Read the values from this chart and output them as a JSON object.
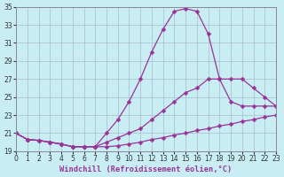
{
  "xlabel": "Windchill (Refroidissement éolien,°C)",
  "background_color": "#c8eef4",
  "grid_color": "#aabbcc",
  "line_color": "#993399",
  "xlim": [
    0,
    23
  ],
  "ylim": [
    19,
    35
  ],
  "xticks": [
    0,
    1,
    2,
    3,
    4,
    5,
    6,
    7,
    8,
    9,
    10,
    11,
    12,
    13,
    14,
    15,
    16,
    17,
    18,
    19,
    20,
    21,
    22,
    23
  ],
  "yticks": [
    19,
    21,
    23,
    25,
    27,
    29,
    31,
    33,
    35
  ],
  "line1_x": [
    0,
    1,
    2,
    3,
    4,
    5,
    6,
    7,
    8,
    9,
    10,
    11,
    12,
    13,
    14,
    15,
    16,
    17,
    18,
    19,
    20,
    21,
    22,
    23
  ],
  "line1_y": [
    21.0,
    20.3,
    20.2,
    20.0,
    19.8,
    19.5,
    19.5,
    19.5,
    19.5,
    19.6,
    19.8,
    20.0,
    20.3,
    20.5,
    20.8,
    21.0,
    21.3,
    21.5,
    21.8,
    22.0,
    22.3,
    22.5,
    22.8,
    23.0
  ],
  "line2_x": [
    0,
    1,
    2,
    3,
    4,
    5,
    6,
    7,
    8,
    9,
    10,
    11,
    12,
    13,
    14,
    15,
    16,
    17,
    18,
    19,
    20,
    21,
    22,
    23
  ],
  "line2_y": [
    21.0,
    20.3,
    20.2,
    20.0,
    19.8,
    19.5,
    19.5,
    19.5,
    20.0,
    20.5,
    21.0,
    21.5,
    22.5,
    23.5,
    24.5,
    25.5,
    26.0,
    27.0,
    27.0,
    27.0,
    27.0,
    26.0,
    25.0,
    24.0
  ],
  "line3_x": [
    0,
    1,
    2,
    3,
    4,
    5,
    6,
    7,
    8,
    9,
    10,
    11,
    12,
    13,
    14,
    15,
    16,
    17,
    18,
    19,
    20,
    21,
    22,
    23
  ],
  "line3_y": [
    21.0,
    20.3,
    20.2,
    20.0,
    19.8,
    19.5,
    19.5,
    19.5,
    21.0,
    22.5,
    24.5,
    27.0,
    30.0,
    32.5,
    34.5,
    34.8,
    34.5,
    32.0,
    27.0,
    24.5,
    24.0,
    24.0,
    24.0,
    24.0
  ],
  "markersize": 2.5,
  "linewidth": 0.9,
  "tick_fontsize": 5.5,
  "label_fontsize": 6.2
}
